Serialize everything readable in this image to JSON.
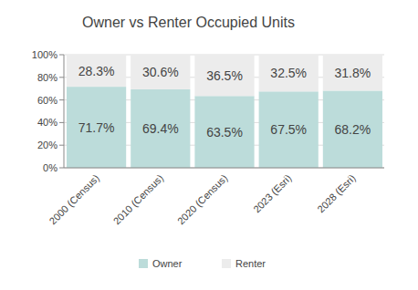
{
  "chart_data": {
    "type": "bar",
    "title": "Owner vs Renter Occupied Units",
    "categories": [
      "2000 (Census)",
      "2010 (Census)",
      "2020 (Census)",
      "2023 (Esri)",
      "2028 (Esri)"
    ],
    "series": [
      {
        "name": "Owner",
        "color": "#bcdcda",
        "values": [
          71.7,
          69.4,
          63.5,
          67.5,
          68.2
        ],
        "value_labels": [
          "71.7%",
          "69.4%",
          "63.5%",
          "67.5%",
          "68.2%"
        ]
      },
      {
        "name": "Renter",
        "color": "#ececec",
        "values": [
          28.3,
          30.6,
          36.5,
          32.5,
          31.8
        ],
        "value_labels": [
          "28.3%",
          "30.6%",
          "36.5%",
          "32.5%",
          "31.8%"
        ]
      }
    ],
    "ylim": [
      0,
      100
    ],
    "yticks": [
      {
        "value": 0,
        "label": "0%"
      },
      {
        "value": 20,
        "label": "20%"
      },
      {
        "value": 40,
        "label": "40%"
      },
      {
        "value": 60,
        "label": "60%"
      },
      {
        "value": 80,
        "label": "80%"
      },
      {
        "value": 100,
        "label": "100%"
      }
    ],
    "stacked": true,
    "data_labels": true,
    "grid": true,
    "legend": "bottom"
  }
}
